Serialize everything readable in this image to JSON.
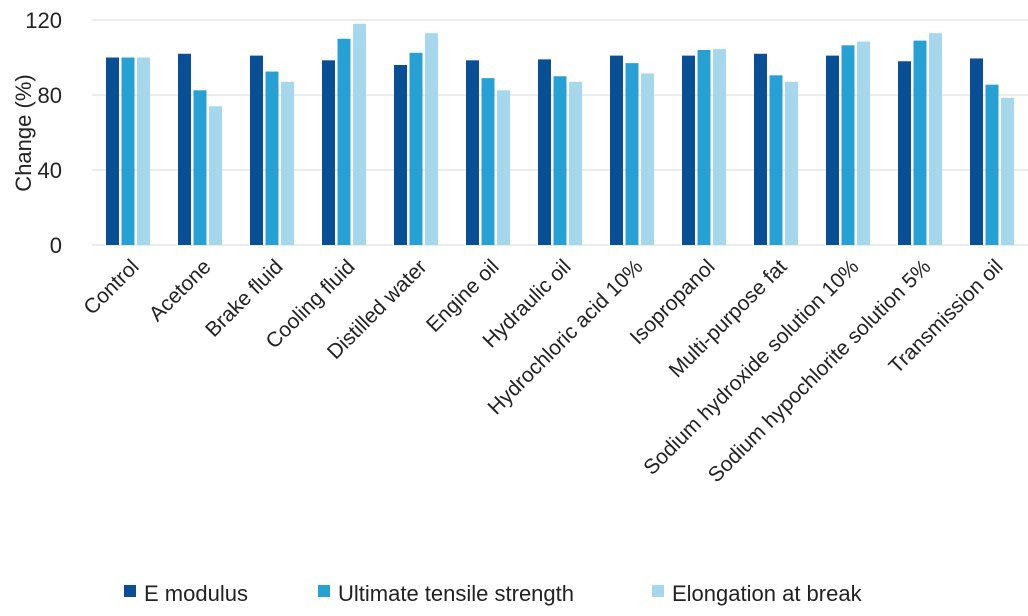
{
  "chart_data": {
    "type": "bar",
    "ylabel": "Change (%)",
    "xlabel": "",
    "ylim": [
      0,
      120
    ],
    "yticks": [
      0,
      40,
      80,
      120
    ],
    "grid": true,
    "legend_position": "bottom",
    "categories": [
      "Control",
      "Acetone",
      "Brake fluid",
      "Cooling fluid",
      "Distilled water",
      "Engine oil",
      "Hydraulic oil",
      "Hydrochloric acid 10%",
      "Isopropanol",
      "Multi-purpose fat",
      "Sodium hydroxide solution 10%",
      "Sodium hypochlorite solution 5%",
      "Transmission oil"
    ],
    "series": [
      {
        "name": "E modulus",
        "color": "#0a4f96",
        "values": [
          100,
          102,
          101,
          98.5,
          96,
          98.5,
          99,
          101,
          101,
          102,
          101,
          98,
          99.5
        ]
      },
      {
        "name": "Ultimate tensile strength",
        "color": "#28a0d4",
        "values": [
          100,
          82.5,
          92.5,
          110,
          102.5,
          89,
          90,
          97,
          104,
          90.5,
          106.5,
          109,
          85.5
        ]
      },
      {
        "name": "Elongation at break",
        "color": "#a6d7ec",
        "values": [
          100,
          74,
          87,
          118,
          113,
          82.5,
          87,
          91.5,
          104.5,
          87,
          108.5,
          113,
          78.5
        ]
      }
    ]
  }
}
